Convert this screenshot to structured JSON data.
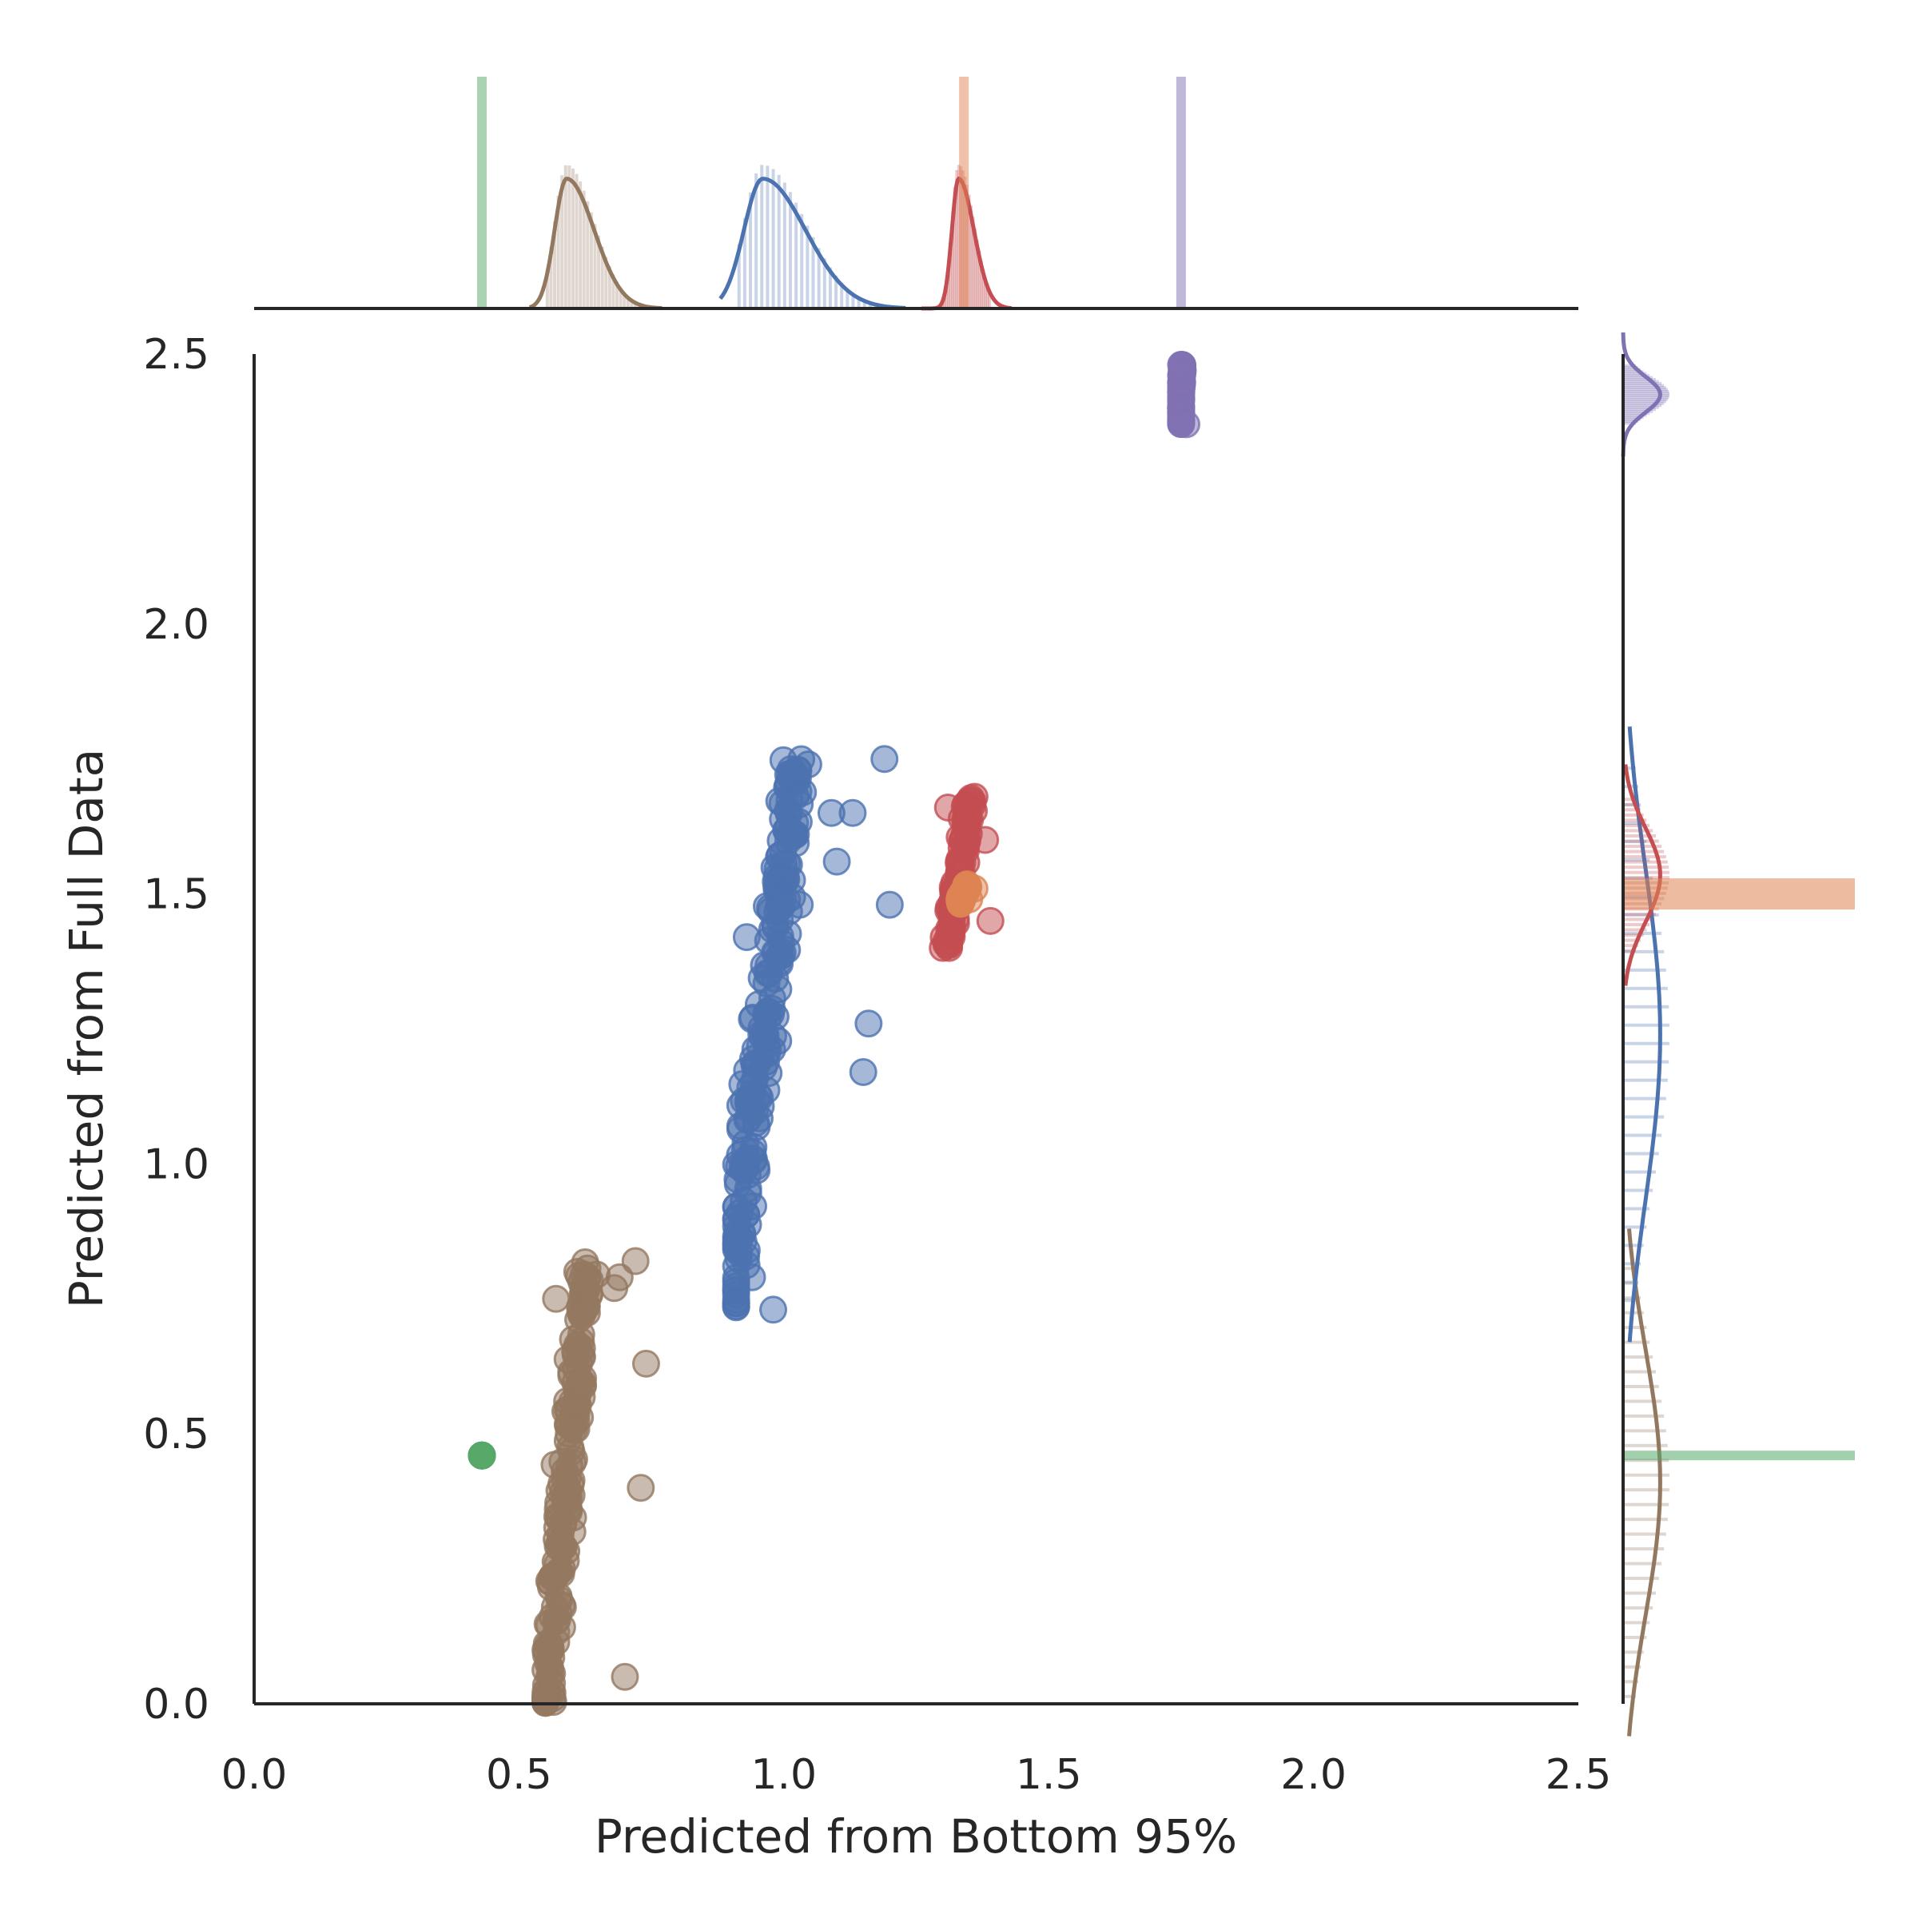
{
  "chart_data": {
    "type": "scatter",
    "subtype": "jointplot",
    "title": "",
    "xlabel": "Predicted from Bottom 95%",
    "ylabel": "Predicted from Full Data",
    "xlim": [
      0,
      2.5
    ],
    "ylim": [
      0,
      2.5
    ],
    "xticks": [
      "0.0",
      "0.5",
      "1.0",
      "1.5",
      "2.0",
      "2.5"
    ],
    "yticks": [
      "0.0",
      "0.5",
      "1.0",
      "1.5",
      "2.0",
      "2.5"
    ],
    "grid": false,
    "legend": "none",
    "series": [
      {
        "color": "#937860",
        "cluster": {
          "x_min": 0.55,
          "x_max": 0.73,
          "x_mode": 0.59,
          "y_min": 0.0,
          "y_max": 0.82
        },
        "points": [
          [
            0.72,
            0.82
          ],
          [
            0.69,
            0.79
          ],
          [
            0.68,
            0.77
          ],
          [
            0.74,
            0.63
          ],
          [
            0.73,
            0.4
          ],
          [
            0.7,
            0.05
          ],
          [
            0.57,
            0.75
          ],
          [
            0.61,
            0.8
          ]
        ]
      },
      {
        "color": "#4c72b0",
        "cluster": {
          "x_min": 0.91,
          "x_max": 1.19,
          "x_mode": 0.96,
          "y_min": 0.73,
          "y_max": 1.75
        },
        "points": [
          [
            1.19,
            1.75
          ],
          [
            1.09,
            1.65
          ],
          [
            1.13,
            1.65
          ],
          [
            1.1,
            1.56
          ],
          [
            1.03,
            1.48
          ],
          [
            0.93,
            1.42
          ],
          [
            0.98,
            0.73
          ],
          [
            0.94,
            0.79
          ],
          [
            0.93,
            0.84
          ],
          [
            1.2,
            1.48
          ],
          [
            1.16,
            1.26
          ],
          [
            1.15,
            1.17
          ]
        ]
      },
      {
        "color": "#c44e52",
        "cluster": {
          "x_min": 1.29,
          "x_max": 1.39,
          "x_mode": 1.33,
          "y_min": 1.39,
          "y_max": 1.68
        },
        "points": [
          [
            1.36,
            1.68
          ],
          [
            1.38,
            1.6
          ],
          [
            1.39,
            1.45
          ],
          [
            1.3,
            1.4
          ],
          [
            1.31,
            1.66
          ]
        ]
      },
      {
        "color": "#dd8452",
        "cluster": {
          "x_min": 1.32,
          "x_max": 1.36,
          "x_mode": 1.34,
          "y_min": 1.48,
          "y_max": 1.52
        },
        "points": [
          [
            1.36,
            1.51
          ],
          [
            1.35,
            1.49
          ]
        ]
      },
      {
        "color": "#8172b3",
        "cluster": {
          "x_min": 1.75,
          "x_max": 1.76,
          "x_mode": 1.75,
          "y_min": 2.37,
          "y_max": 2.48
        },
        "points": [
          [
            1.75,
            2.48
          ],
          [
            1.75,
            2.46
          ],
          [
            1.75,
            2.43
          ],
          [
            1.75,
            2.4
          ],
          [
            1.76,
            2.37
          ]
        ]
      },
      {
        "color": "#55a868",
        "cluster": {
          "x_min": 0.43,
          "x_max": 0.43,
          "x_mode": 0.43,
          "y_min": 0.46,
          "y_max": 0.46
        },
        "points": [
          [
            0.43,
            0.46
          ]
        ]
      }
    ]
  }
}
